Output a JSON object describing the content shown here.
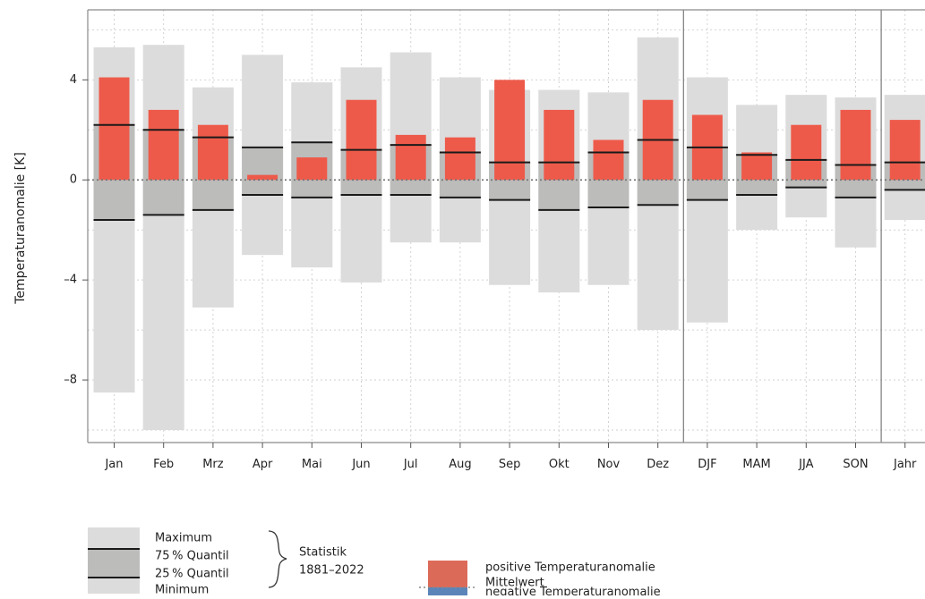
{
  "chart_data": {
    "type": "bar",
    "ylabel": "Temperaturanomalie [K]",
    "ylim": [
      -10.5,
      6.8
    ],
    "yticks": [
      4,
      0,
      -4,
      -8
    ],
    "ytick_labels": [
      "4",
      "0",
      "–4",
      "–8"
    ],
    "grid": true,
    "categories": [
      "Jan",
      "Feb",
      "Mrz",
      "Apr",
      "Mai",
      "Jun",
      "Jul",
      "Aug",
      "Sep",
      "Okt",
      "Nov",
      "Dez",
      "DJF",
      "MAM",
      "JJA",
      "SON",
      "Jahr"
    ],
    "series": [
      {
        "key": "anomaly",
        "values": [
          4.1,
          2.8,
          2.2,
          0.2,
          0.9,
          3.2,
          1.8,
          1.7,
          4.0,
          2.8,
          1.6,
          3.2,
          2.6,
          1.1,
          2.2,
          2.8,
          2.4
        ]
      },
      {
        "key": "max",
        "values": [
          5.3,
          5.4,
          3.7,
          5.0,
          3.9,
          4.5,
          5.1,
          4.1,
          3.6,
          3.6,
          3.5,
          5.7,
          4.1,
          3.0,
          3.4,
          3.3,
          3.4
        ]
      },
      {
        "key": "q75",
        "values": [
          2.2,
          2.0,
          1.7,
          1.3,
          1.5,
          1.2,
          1.4,
          1.1,
          0.7,
          0.7,
          1.1,
          1.6,
          1.3,
          1.0,
          0.8,
          0.6,
          0.7
        ]
      },
      {
        "key": "q25",
        "values": [
          -1.6,
          -1.4,
          -1.2,
          -0.6,
          -0.7,
          -0.6,
          -0.6,
          -0.7,
          -0.8,
          -1.2,
          -1.1,
          -1.0,
          -0.8,
          -0.6,
          -0.3,
          -0.7,
          -0.4
        ]
      },
      {
        "key": "min",
        "values": [
          -8.5,
          -10.0,
          -5.1,
          -3.0,
          -3.5,
          -4.1,
          -2.5,
          -2.5,
          -4.2,
          -4.5,
          -4.2,
          -6.0,
          -5.7,
          -2.0,
          -1.5,
          -2.7,
          -1.6
        ]
      }
    ],
    "group_separators_after": [
      "Dez",
      "SON"
    ],
    "colors": {
      "positive": "#ee5a4a",
      "negative": "#5b84b8",
      "range": "#dcdcdc",
      "quantile_box": "#bcbcbb",
      "quantile_line": "#1a1a1a",
      "mean_line": "#777777"
    }
  },
  "legend": {
    "stat_items": [
      "Maximum",
      "75 % Quantil",
      "25 % Quantil",
      "Minimum"
    ],
    "stat_title": "Statistik",
    "stat_period": "1881–2022",
    "anomaly_items": [
      "positive Temperaturanomalie",
      "Mittelwert",
      "negative Temperaturanomalie"
    ]
  }
}
